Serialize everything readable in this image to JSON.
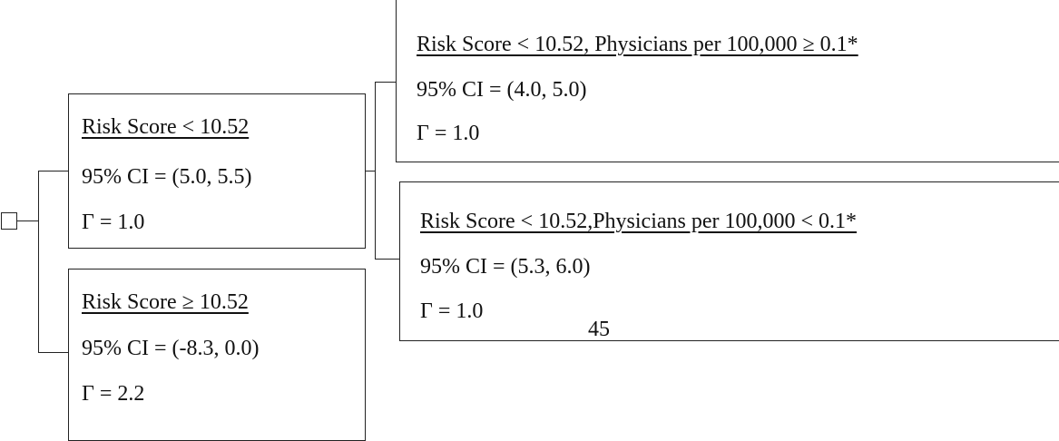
{
  "nodes": [
    {
      "lines": [
        "Risk Score < 10.52",
        "95% CI = (5.0, 5.5)",
        "Γ = 1.0"
      ]
    },
    {
      "lines": [
        "Risk Score ≥ 10.52",
        "95% CI = (-8.3, 0.0)",
        "Γ = 2.2"
      ]
    },
    {
      "lines": [
        "Risk Score < 10.52, Physicians per 100,000 ≥ 0.1*",
        "95% CI = (4.0, 5.0)",
        "Γ = 1.0"
      ]
    },
    {
      "lines": [
        "Risk Score < 10.52,Physicians per 100,000 < 0.1*",
        "95% CI = (5.3, 6.0)",
        "Γ = 1.0"
      ]
    }
  ],
  "page_number": "45"
}
